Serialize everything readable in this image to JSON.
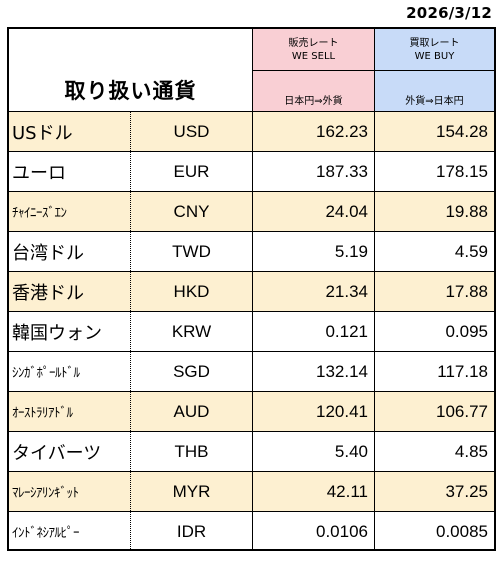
{
  "date": "2026/3/12",
  "header": {
    "title": "取り扱い通貨",
    "sell_label": "販売レート",
    "sell_label_en": "WE SELL",
    "sell_direction": "日本円⇒外貨",
    "buy_label": "買取レート",
    "buy_label_en": "WE BUY",
    "buy_direction": "外貨⇒日本円"
  },
  "colors": {
    "sell_header": "#f9cfd4",
    "buy_header": "#c8dbf8",
    "highlight_row": "#fdf0d1"
  },
  "rows": [
    {
      "name": "USドル",
      "code": "USD",
      "sell": "162.23",
      "buy": "154.28"
    },
    {
      "name": "ユーロ",
      "code": "EUR",
      "sell": "187.33",
      "buy": "178.15"
    },
    {
      "name": "ﾁｬｲﾆｰｽﾞｴﾝ",
      "code": "CNY",
      "sell": "24.04",
      "buy": "19.88"
    },
    {
      "name": "台湾ドル",
      "code": "TWD",
      "sell": "5.19",
      "buy": "4.59"
    },
    {
      "name": "香港ドル",
      "code": "HKD",
      "sell": "21.34",
      "buy": "17.88"
    },
    {
      "name": "韓国ウォン",
      "code": "KRW",
      "sell": "0.121",
      "buy": "0.095"
    },
    {
      "name": "ｼﾝｶﾞﾎﾟｰﾙﾄﾞﾙ",
      "code": "SGD",
      "sell": "132.14",
      "buy": "117.18"
    },
    {
      "name": "ｵｰｽﾄﾗﾘｱﾄﾞﾙ",
      "code": "AUD",
      "sell": "120.41",
      "buy": "106.77"
    },
    {
      "name": "タイバーツ",
      "code": "THB",
      "sell": "5.40",
      "buy": "4.85"
    },
    {
      "name": "ﾏﾚｰｼｱﾘﾝｷﾞｯﾄ",
      "code": "MYR",
      "sell": "42.11",
      "buy": "37.25"
    },
    {
      "name": "ｲﾝﾄﾞﾈｼｱﾙﾋﾟｰ",
      "code": "IDR",
      "sell": "0.0106",
      "buy": "0.0085"
    }
  ]
}
